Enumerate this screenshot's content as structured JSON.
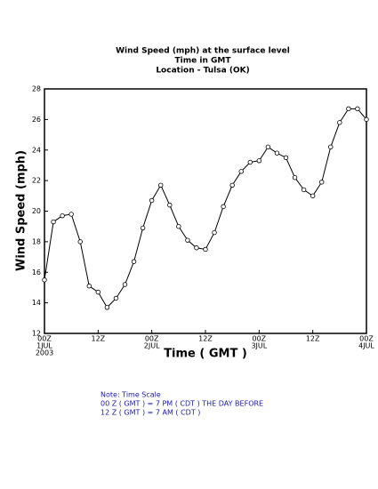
{
  "chart_data": {
    "type": "line",
    "title": [
      "Wind Speed (mph) at the surface level",
      "Time in GMT",
      "Location - Tulsa (OK)"
    ],
    "x_label": "Time ( GMT )",
    "y_label": "Wind Speed (mph)",
    "x": [
      0,
      2,
      4,
      6,
      8,
      10,
      12,
      14,
      16,
      18,
      20,
      22,
      24,
      26,
      28,
      30,
      32,
      34,
      36,
      38,
      40,
      42,
      44,
      46,
      48,
      50,
      52,
      54,
      56,
      58,
      60,
      62,
      64,
      66,
      68,
      70,
      72
    ],
    "series": [
      {
        "name": "Wind Speed",
        "color": "#000000",
        "values": [
          15.5,
          19.3,
          19.7,
          19.8,
          18.0,
          15.1,
          14.7,
          13.7,
          14.3,
          15.2,
          16.7,
          18.9,
          20.7,
          21.7,
          20.4,
          19.0,
          18.1,
          17.6,
          17.5,
          18.6,
          20.3,
          21.7,
          22.6,
          23.2,
          23.3,
          24.2,
          23.8,
          23.5,
          22.2,
          21.4,
          21.0,
          21.9,
          24.2,
          25.8,
          26.7,
          26.7,
          26.0
        ]
      }
    ],
    "xlim": [
      0,
      72
    ],
    "xticks": [
      {
        "value": 0,
        "label": "00Z"
      },
      {
        "value": 12,
        "label": "12Z"
      },
      {
        "value": 24,
        "label": "00Z"
      },
      {
        "value": 36,
        "label": "12Z"
      },
      {
        "value": 48,
        "label": "00Z"
      },
      {
        "value": 60,
        "label": "12Z"
      },
      {
        "value": 72,
        "label": "00Z"
      }
    ],
    "date_labels": [
      {
        "value": 0,
        "label": "1JUL"
      },
      {
        "value": 24,
        "label": "2JUL"
      },
      {
        "value": 48,
        "label": "3JUL"
      },
      {
        "value": 72,
        "label": "4JUL"
      }
    ],
    "year_label": "2003",
    "ylim": [
      12,
      28
    ],
    "yticks": [
      12,
      14,
      16,
      18,
      20,
      22,
      24,
      26,
      28
    ],
    "notes": [
      "Note: Time Scale",
      "00 Z ( GMT ) = 7 PM ( CDT ) THE DAY BEFORE",
      "12 Z ( GMT ) = 7 AM ( CDT )"
    ]
  }
}
